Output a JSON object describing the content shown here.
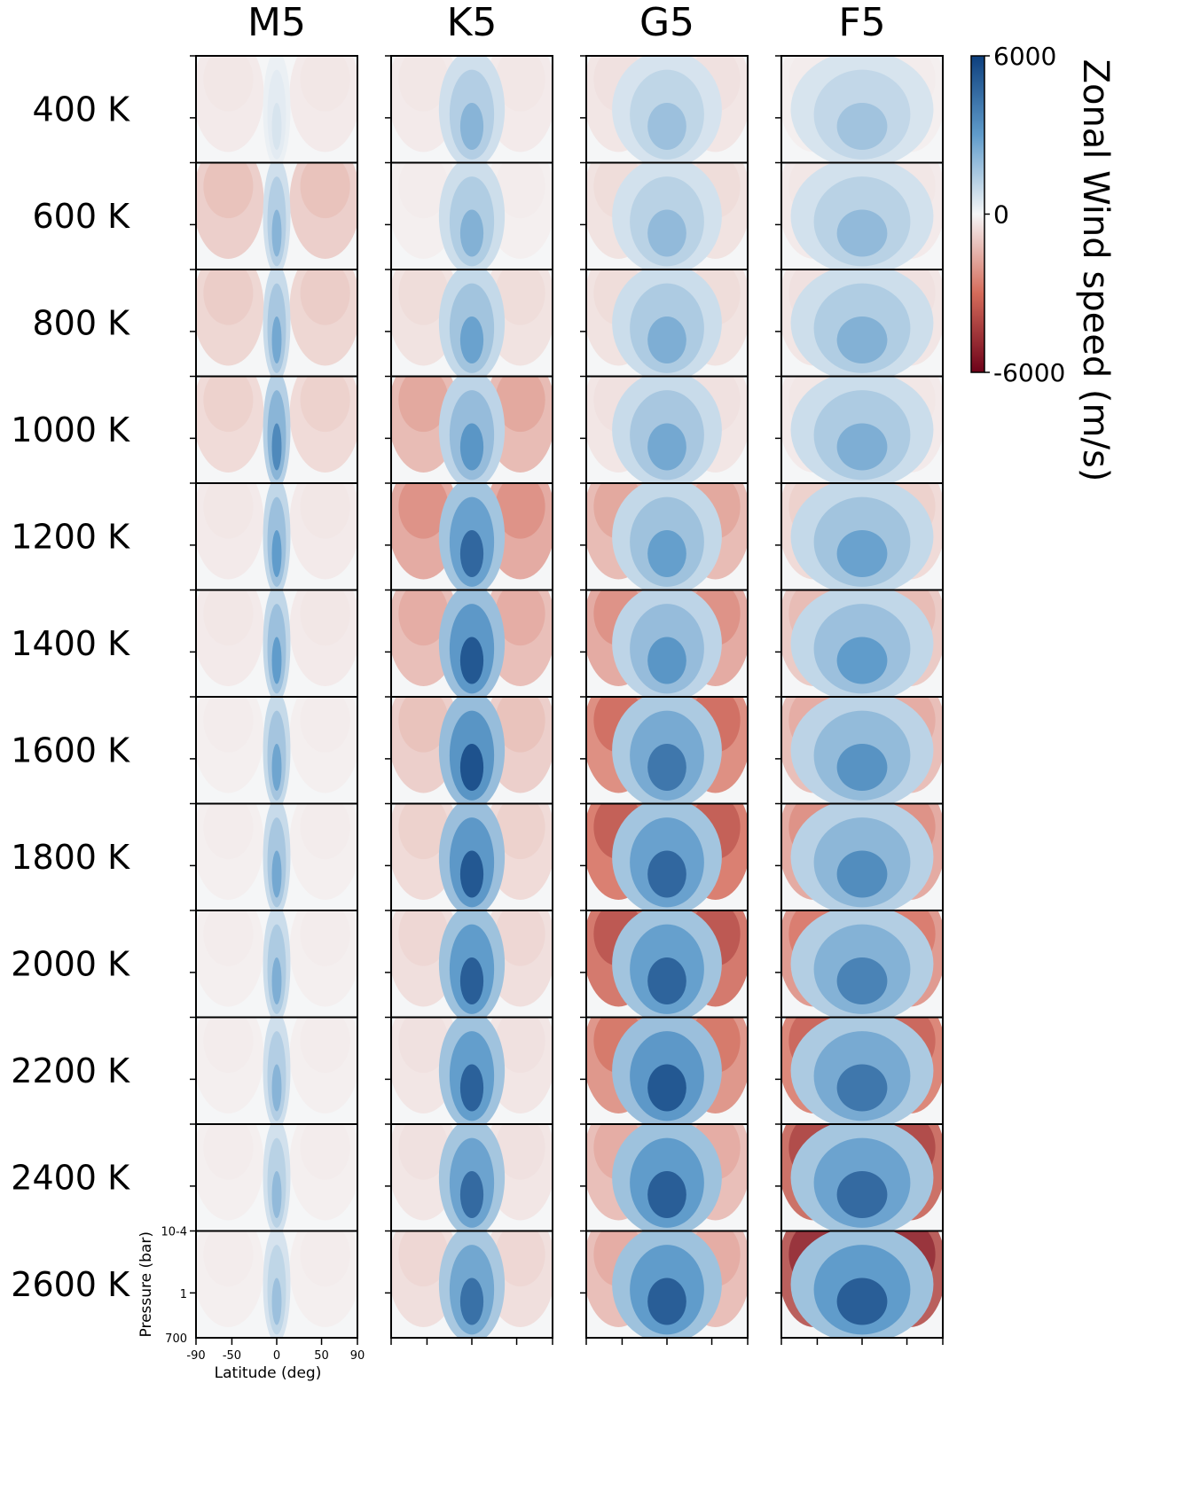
{
  "chart_data": {
    "type": "heatmap",
    "layout": "small-multiples grid",
    "columns": [
      "M5",
      "K5",
      "G5",
      "F5"
    ],
    "rows": [
      "400 K",
      "600 K",
      "800 K",
      "1000 K",
      "1200 K",
      "1400 K",
      "1600 K",
      "1800 K",
      "2000 K",
      "2200 K",
      "2400 K",
      "2600 K"
    ],
    "xlabel": "Latitude (deg)",
    "ylabel": "Pressure (bar)",
    "xticks": [
      "-90",
      "-50",
      "0",
      "50",
      "90"
    ],
    "xlim": [
      -90,
      90
    ],
    "yticks": [
      "10-4",
      "1",
      "700"
    ],
    "ylim": [
      0.0001,
      700
    ],
    "y_log_scale": true,
    "colorbar": {
      "title": "Zonal Wind speed (m/s)",
      "ticks": [
        "6000",
        "0",
        "-6000"
      ],
      "vmin": -6000,
      "vmax": 6000,
      "colormap": "diverging red-white-blue",
      "color_positive": "#0d3f7d",
      "color_zero": "#f5f6f7",
      "color_negative": "#6d0219"
    },
    "panel_jet_peak_speed": [
      [
        600,
        2200,
        1800,
        1700
      ],
      [
        2200,
        2300,
        2000,
        2000
      ],
      [
        2600,
        2800,
        2400,
        2300
      ],
      [
        3600,
        3200,
        2600,
        2400
      ],
      [
        3000,
        4700,
        2900,
        2800
      ],
      [
        3000,
        5200,
        3200,
        3000
      ],
      [
        2700,
        5400,
        4200,
        3300
      ],
      [
        2600,
        5200,
        4700,
        3500
      ],
      [
        2400,
        5000,
        4800,
        3800
      ],
      [
        2200,
        4900,
        5200,
        4200
      ],
      [
        2000,
        4600,
        5000,
        4600
      ],
      [
        1800,
        4400,
        5000,
        5000
      ]
    ],
    "panel_offequator_counter_speed": [
      [
        -300,
        -300,
        -400,
        -200
      ],
      [
        -1000,
        -200,
        -500,
        -300
      ],
      [
        -800,
        -500,
        -500,
        -400
      ],
      [
        -700,
        -1500,
        -400,
        -300
      ],
      [
        -300,
        -1900,
        -1500,
        -700
      ],
      [
        -300,
        -1400,
        -1900,
        -1100
      ],
      [
        -200,
        -1000,
        -2600,
        -1400
      ],
      [
        -200,
        -700,
        -3000,
        -1900
      ],
      [
        -200,
        -600,
        -3200,
        -2300
      ],
      [
        -200,
        -400,
        -2400,
        -2800
      ],
      [
        -200,
        -400,
        -1400,
        -3500
      ],
      [
        -200,
        -600,
        -1400,
        -4100
      ]
    ]
  }
}
